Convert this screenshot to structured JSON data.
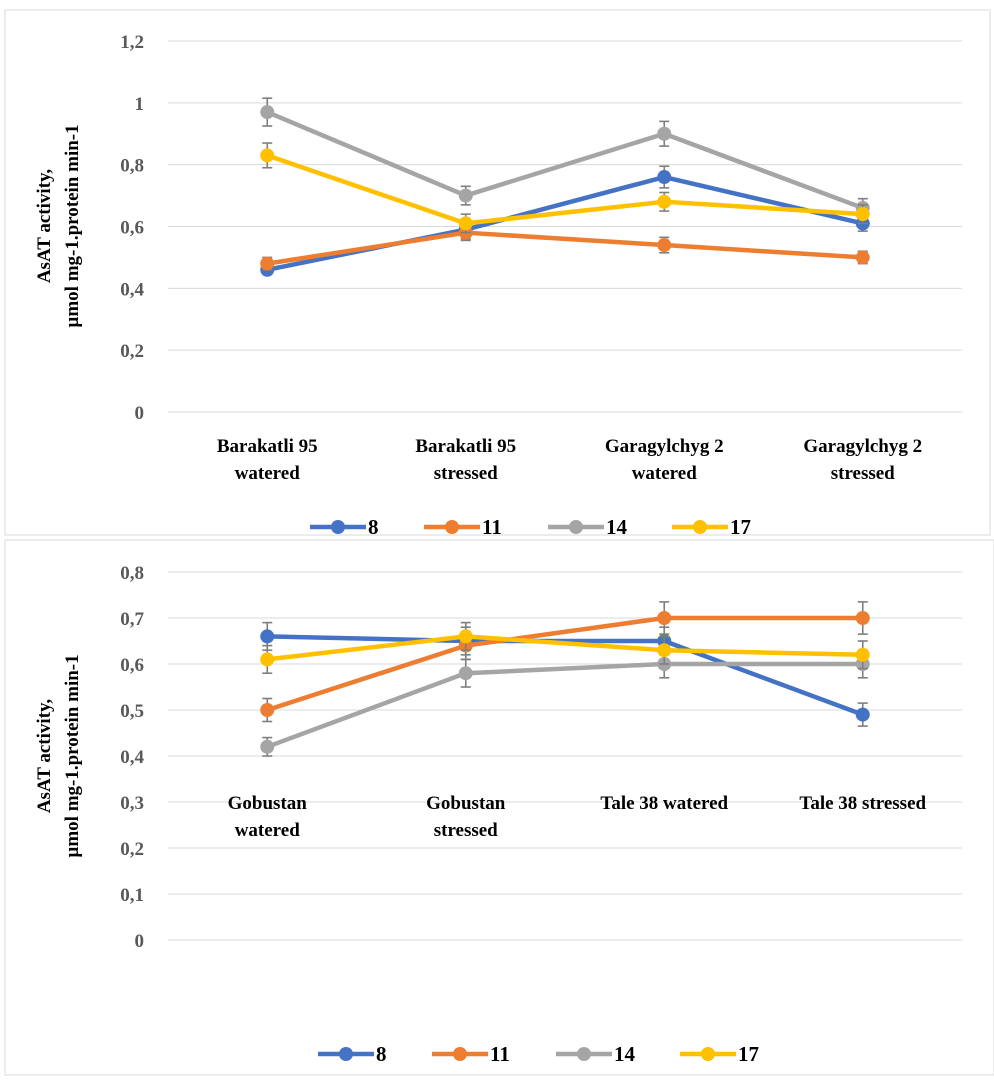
{
  "chart_data": [
    {
      "type": "line",
      "title": "",
      "xlabel": "",
      "ylabel": [
        "AsAT activity,",
        "µmol mg-1.protein min-1"
      ],
      "ylim": [
        0,
        1.2
      ],
      "yticks": [
        "0",
        "0,2",
        "0,4",
        "0,6",
        "0,8",
        "1",
        "1,2"
      ],
      "ytick_values": [
        0,
        0.2,
        0.4,
        0.6,
        0.8,
        1.0,
        1.2
      ],
      "grid": true,
      "legend_position": "bottom",
      "categories": [
        [
          "Barakatli 95",
          "watered"
        ],
        [
          "Barakatli 95",
          "stressed"
        ],
        [
          "Garagylchyg 2",
          "watered"
        ],
        [
          "Garagylchyg 2",
          "stressed"
        ]
      ],
      "series": [
        {
          "name": "8",
          "color": "#4472c4",
          "values": [
            0.46,
            0.59,
            0.76,
            0.61
          ],
          "errors": [
            0.015,
            0.03,
            0.035,
            0.025
          ]
        },
        {
          "name": "11",
          "color": "#ed7d31",
          "values": [
            0.48,
            0.58,
            0.54,
            0.5
          ],
          "errors": [
            0.02,
            0.025,
            0.025,
            0.02
          ]
        },
        {
          "name": "14",
          "color": "#a5a5a5",
          "values": [
            0.97,
            0.7,
            0.9,
            0.66
          ],
          "errors": [
            0.045,
            0.03,
            0.04,
            0.03
          ]
        },
        {
          "name": "17",
          "color": "#ffc000",
          "values": [
            0.83,
            0.61,
            0.68,
            0.64
          ],
          "errors": [
            0.04,
            0.03,
            0.03,
            0.03
          ]
        }
      ]
    },
    {
      "type": "line",
      "title": "",
      "xlabel": "",
      "ylabel": [
        "AsAT activity,",
        "µmol mg-1.protein min-1"
      ],
      "ylim": [
        0,
        0.8
      ],
      "yticks": [
        "0",
        "0,1",
        "0,2",
        "0,3",
        "0,4",
        "0,5",
        "0,6",
        "0,7",
        "0,8"
      ],
      "ytick_values": [
        0,
        0.1,
        0.2,
        0.3,
        0.4,
        0.5,
        0.6,
        0.7,
        0.8
      ],
      "grid": true,
      "legend_position": "bottom",
      "categories": [
        [
          "Gobustan",
          "watered"
        ],
        [
          "Gobustan",
          "stressed"
        ],
        [
          "Tale 38 watered"
        ],
        [
          "Tale 38  stressed"
        ]
      ],
      "series": [
        {
          "name": "8",
          "color": "#4472c4",
          "values": [
            0.66,
            0.65,
            0.65,
            0.49
          ],
          "errors": [
            0.03,
            0.03,
            0.03,
            0.025
          ]
        },
        {
          "name": "11",
          "color": "#ed7d31",
          "values": [
            0.5,
            0.64,
            0.7,
            0.7
          ],
          "errors": [
            0.025,
            0.03,
            0.035,
            0.035
          ]
        },
        {
          "name": "14",
          "color": "#a5a5a5",
          "values": [
            0.42,
            0.58,
            0.6,
            0.6
          ],
          "errors": [
            0.02,
            0.03,
            0.03,
            0.03
          ]
        },
        {
          "name": "17",
          "color": "#ffc000",
          "values": [
            0.61,
            0.66,
            0.63,
            0.62
          ],
          "errors": [
            0.03,
            0.03,
            0.03,
            0.03
          ]
        }
      ]
    }
  ]
}
